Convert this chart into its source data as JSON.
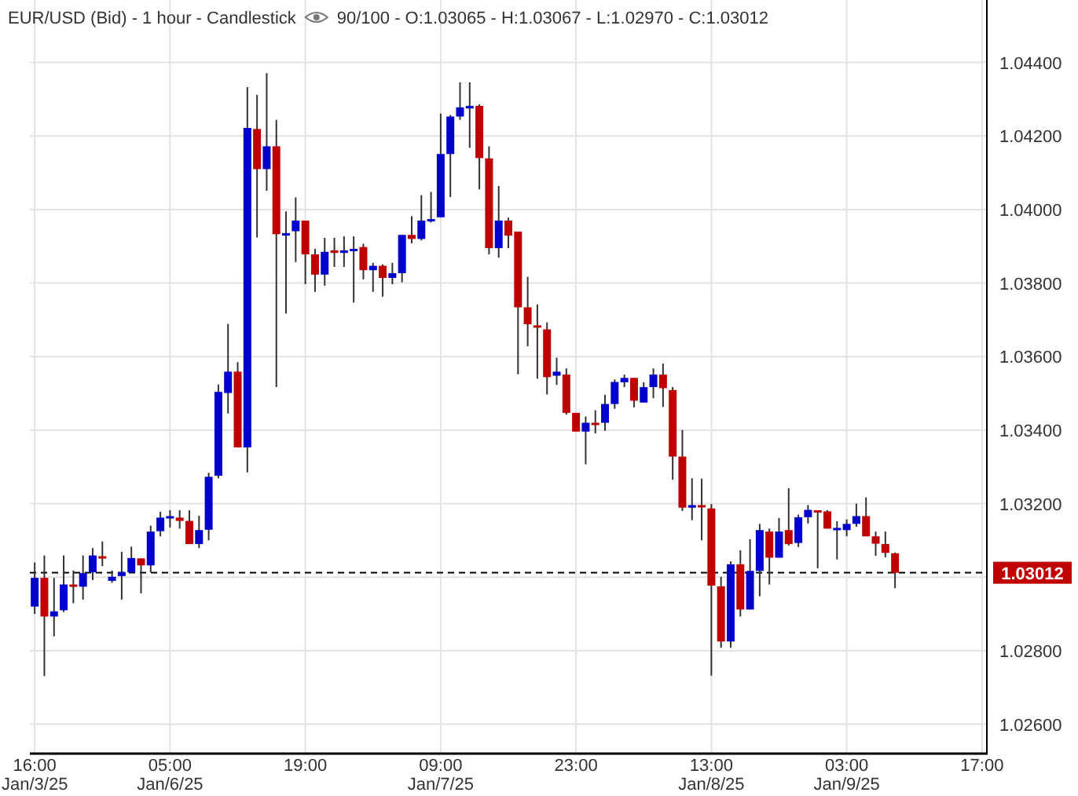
{
  "chart_data": {
    "type": "candlestick",
    "title": "EUR/USD (Bid) - 1 hour - Candlestick",
    "subtitle": "90/100 - O:1.03065 - H:1.03067 - L:1.02970 - C:1.03012",
    "categories": [
      "16:00\nJan/3/25",
      null,
      null,
      null,
      null,
      null,
      null,
      null,
      null,
      null,
      null,
      null,
      null,
      null,
      "05:00\nJan/6/25",
      null,
      null,
      null,
      null,
      null,
      null,
      null,
      null,
      null,
      null,
      null,
      null,
      null,
      "19:00",
      null,
      null,
      null,
      null,
      null,
      null,
      null,
      null,
      null,
      null,
      null,
      null,
      null,
      "09:00\nJan/7/25",
      null,
      null,
      null,
      null,
      null,
      null,
      null,
      null,
      null,
      null,
      null,
      null,
      null,
      "23:00",
      null,
      null,
      null,
      null,
      null,
      null,
      null,
      null,
      null,
      null,
      null,
      null,
      null,
      "13:00\nJan/8/25",
      null,
      null,
      null,
      null,
      null,
      null,
      null,
      null,
      null,
      null,
      null,
      null,
      null,
      "03:00\nJan/9/25",
      null,
      null,
      null,
      null,
      null,
      null,
      null,
      null,
      null,
      null,
      null,
      null,
      null,
      "17:00"
    ],
    "ohlc": [
      [
        1.0292,
        1.0304,
        1.029,
        1.02998
      ],
      [
        1.02998,
        1.03059,
        1.02731,
        1.02893
      ],
      [
        1.02893,
        1.02998,
        1.02839,
        1.02907
      ],
      [
        1.0291,
        1.03059,
        1.02905,
        1.0298
      ],
      [
        1.0298,
        1.03018,
        1.02929,
        1.02975
      ],
      [
        1.02974,
        1.03059,
        1.02939,
        1.03011
      ],
      [
        1.03013,
        1.03079,
        1.02992,
        1.03059
      ],
      [
        1.03057,
        1.03097,
        1.0303,
        1.03052
      ],
      [
        1.0299,
        1.03018,
        1.02985,
        1.03001
      ],
      [
        1.03003,
        1.03069,
        1.02939,
        1.03014
      ],
      [
        1.03013,
        1.03083,
        1.03013,
        1.03052
      ],
      [
        1.03051,
        1.03051,
        1.02956,
        1.03032
      ],
      [
        1.03032,
        1.0314,
        1.03013,
        1.03124
      ],
      [
        1.03125,
        1.03178,
        1.03111,
        1.03162
      ],
      [
        1.03163,
        1.03182,
        1.03135,
        1.03166
      ],
      [
        1.03162,
        1.03182,
        1.03132,
        1.03153
      ],
      [
        1.03153,
        1.03182,
        1.0309,
        1.0309
      ],
      [
        1.0309,
        1.03167,
        1.03079,
        1.03128
      ],
      [
        1.03129,
        1.03284,
        1.031,
        1.03273
      ],
      [
        1.03276,
        1.03524,
        1.03269,
        1.03504
      ],
      [
        1.03501,
        1.03689,
        1.03445,
        1.03559
      ],
      [
        1.03559,
        1.03585,
        1.03353,
        1.03353
      ],
      [
        1.03353,
        1.04333,
        1.03285,
        1.04222
      ],
      [
        1.04219,
        1.04312,
        1.03924,
        1.0411
      ],
      [
        1.0411,
        1.04371,
        1.04051,
        1.04172
      ],
      [
        1.04172,
        1.04244,
        1.03517,
        1.03933
      ],
      [
        1.03929,
        1.03995,
        1.03717,
        1.03936
      ],
      [
        1.03941,
        1.04033,
        1.03857,
        1.0397
      ],
      [
        1.0397,
        1.0397,
        1.03797,
        1.03878
      ],
      [
        1.03878,
        1.03893,
        1.03776,
        1.03823
      ],
      [
        1.03823,
        1.03923,
        1.03793,
        1.03885
      ],
      [
        1.03889,
        1.03923,
        1.03844,
        1.03882
      ],
      [
        1.03882,
        1.03927,
        1.03844,
        1.03889
      ],
      [
        1.0389,
        1.03927,
        1.03747,
        1.03893
      ],
      [
        1.03898,
        1.03907,
        1.0381,
        1.03835
      ],
      [
        1.03835,
        1.03855,
        1.03776,
        1.03847
      ],
      [
        1.03847,
        1.03851,
        1.03763,
        1.03814
      ],
      [
        1.03814,
        1.03855,
        1.03797,
        1.03827
      ],
      [
        1.03827,
        1.03931,
        1.03802,
        1.03931
      ],
      [
        1.03931,
        1.03982,
        1.03908,
        1.0392
      ],
      [
        1.0392,
        1.04039,
        1.03916,
        1.0397
      ],
      [
        1.0397,
        1.04048,
        1.03965,
        1.03974
      ],
      [
        1.03979,
        1.04261,
        1.03979,
        1.04151
      ],
      [
        1.04151,
        1.04257,
        1.04034,
        1.04253
      ],
      [
        1.04253,
        1.04346,
        1.04244,
        1.04278
      ],
      [
        1.04275,
        1.04346,
        1.04168,
        1.04282
      ],
      [
        1.04282,
        1.04286,
        1.04055,
        1.0414
      ],
      [
        1.04139,
        1.04172,
        1.03878,
        1.03895
      ],
      [
        1.03895,
        1.04064,
        1.03869,
        1.0397
      ],
      [
        1.0397,
        1.03978,
        1.03895,
        1.03929
      ],
      [
        1.0394,
        1.0394,
        1.03552,
        1.03734
      ],
      [
        1.03734,
        1.03817,
        1.03628,
        1.03688
      ],
      [
        1.03685,
        1.03742,
        1.0354,
        1.0368
      ],
      [
        1.03674,
        1.03693,
        1.03497,
        1.03544
      ],
      [
        1.03548,
        1.03597,
        1.03523,
        1.03559
      ],
      [
        1.03551,
        1.03568,
        1.03442,
        1.03447
      ],
      [
        1.03447,
        1.03447,
        1.03396,
        1.03396
      ],
      [
        1.03396,
        1.03437,
        1.03307,
        1.0342
      ],
      [
        1.0342,
        1.03454,
        1.03391,
        1.03417
      ],
      [
        1.0342,
        1.03496,
        1.03398,
        1.03471
      ],
      [
        1.03471,
        1.03538,
        1.03458,
        1.03531
      ],
      [
        1.0353,
        1.03551,
        1.03517,
        1.03542
      ],
      [
        1.03542,
        1.03542,
        1.03462,
        1.0348
      ],
      [
        1.03475,
        1.0353,
        1.03475,
        1.03517
      ],
      [
        1.03517,
        1.03568,
        1.03487,
        1.03551
      ],
      [
        1.03551,
        1.03581,
        1.03463,
        1.03514
      ],
      [
        1.03509,
        1.03517,
        1.03265,
        1.03328
      ],
      [
        1.03328,
        1.034,
        1.0318,
        1.03189
      ],
      [
        1.03189,
        1.03269,
        1.03155,
        1.03196
      ],
      [
        1.03196,
        1.03268,
        1.031,
        1.03194
      ],
      [
        1.03187,
        1.03199,
        1.02732,
        1.02977
      ],
      [
        1.02975,
        1.03001,
        1.02808,
        1.02825
      ],
      [
        1.02825,
        1.03043,
        1.02808,
        1.03035
      ],
      [
        1.03035,
        1.03073,
        1.02893,
        1.02912
      ],
      [
        1.02912,
        1.03103,
        1.02912,
        1.03017
      ],
      [
        1.03017,
        1.03145,
        1.02948,
        1.03128
      ],
      [
        1.03124,
        1.03132,
        1.0298,
        1.03053
      ],
      [
        1.03053,
        1.03161,
        1.03053,
        1.03124
      ],
      [
        1.03128,
        1.03242,
        1.03086,
        1.0309
      ],
      [
        1.03093,
        1.0317,
        1.03082,
        1.03163
      ],
      [
        1.03163,
        1.03196,
        1.03146,
        1.03183
      ],
      [
        1.03182,
        1.03182,
        1.03024,
        1.03179
      ],
      [
        1.03179,
        1.03182,
        1.03132,
        1.03132
      ],
      [
        1.03131,
        1.03152,
        1.03048,
        1.03134
      ],
      [
        1.03128,
        1.03157,
        1.03111,
        1.03145
      ],
      [
        1.03145,
        1.032,
        1.03137,
        1.03166
      ],
      [
        1.03166,
        1.03217,
        1.03111,
        1.03111
      ],
      [
        1.03111,
        1.03124,
        1.03058,
        1.03091
      ],
      [
        1.0309,
        1.03124,
        1.03054,
        1.03066
      ],
      [
        1.03065,
        1.03067,
        1.0297,
        1.03012
      ],
      null,
      null,
      null,
      null,
      null,
      null,
      null,
      null,
      null
    ],
    "colors": [
      "#0000cc",
      "#c00000",
      "#0000cc",
      "#0000cc",
      "#c00000",
      "#0000cc",
      "#0000cc",
      "#c00000",
      "#0000cc",
      "#0000cc",
      "#0000cc",
      "#c00000",
      "#0000cc",
      "#0000cc",
      "#0000cc",
      "#c00000",
      "#c00000",
      "#0000cc",
      "#0000cc",
      "#0000cc",
      "#0000cc",
      "#c00000",
      "#0000cc",
      "#c00000",
      "#0000cc",
      "#c00000",
      "#0000cc",
      "#0000cc",
      "#c00000",
      "#c00000",
      "#0000cc",
      "#c00000",
      "#0000cc",
      "#0000cc",
      "#c00000",
      "#0000cc",
      "#c00000",
      "#0000cc",
      "#0000cc",
      "#c00000",
      "#0000cc",
      "#0000cc",
      "#0000cc",
      "#0000cc",
      "#0000cc",
      "#0000cc",
      "#c00000",
      "#c00000",
      "#0000cc",
      "#c00000",
      "#c00000",
      "#c00000",
      "#c00000",
      "#c00000",
      "#0000cc",
      "#c00000",
      "#c00000",
      "#0000cc",
      "#c00000",
      "#0000cc",
      "#0000cc",
      "#0000cc",
      "#c00000",
      "#0000cc",
      "#0000cc",
      "#c00000",
      "#c00000",
      "#c00000",
      "#0000cc",
      "#c00000",
      "#c00000",
      "#c00000",
      "#0000cc",
      "#c00000",
      "#0000cc",
      "#0000cc",
      "#c00000",
      "#0000cc",
      "#c00000",
      "#0000cc",
      "#0000cc",
      "#c00000",
      "#c00000",
      "#0000cc",
      "#0000cc",
      "#0000cc",
      "#c00000",
      "#c00000",
      "#c00000",
      "#c00000",
      null,
      null,
      null,
      null,
      null,
      null,
      null,
      null,
      null
    ],
    "ylim": [
      1.0252,
      1.0457
    ],
    "yticks": [
      {
        "value": 1.026,
        "label": "1.02600"
      },
      {
        "value": 1.028,
        "label": "1.02800"
      },
      {
        "value": 1.03,
        "label": null
      },
      {
        "value": 1.032,
        "label": "1.03200"
      },
      {
        "value": 1.034,
        "label": "1.03400"
      },
      {
        "value": 1.036,
        "label": "1.03600"
      },
      {
        "value": 1.038,
        "label": "1.03800"
      },
      {
        "value": 1.04,
        "label": "1.04000"
      },
      {
        "value": 1.042,
        "label": "1.04200"
      },
      {
        "value": 1.044,
        "label": "1.04400"
      }
    ],
    "ref_lines": [
      {
        "axis": "y",
        "value": 1.03012,
        "label": "1.03012",
        "line_style": "dashed"
      }
    ],
    "grid": true
  }
}
